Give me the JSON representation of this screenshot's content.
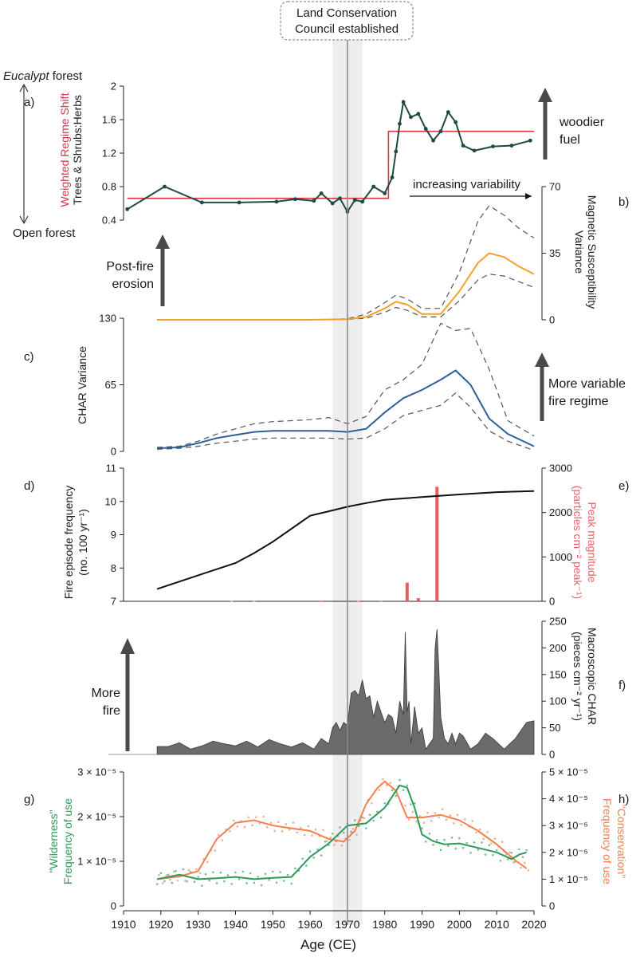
{
  "figure": {
    "x_axis": {
      "label": "Age (CE)",
      "min": 1910,
      "max": 2020,
      "ticks": [
        1910,
        1920,
        1930,
        1940,
        1950,
        1960,
        1970,
        1980,
        1990,
        2000,
        2010,
        2020
      ]
    },
    "marker": {
      "year": 1970,
      "band": [
        1966,
        1974
      ],
      "label_lines": [
        "Land Conservation",
        "Council established"
      ]
    },
    "colors": {
      "dark_teal": "#1f4a46",
      "red": "#e0313c",
      "orange": "#f5a02a",
      "blue": "#2e5f9c",
      "gray_area": "#6b6b6b",
      "green": "#2e9a5a",
      "salmon": "#f2804e",
      "arrow": "#4a4a4a"
    }
  },
  "annotations": {
    "eucalypt_italic": "Eucalypt",
    "eucalypt_rest": " forest",
    "open_forest": "Open forest",
    "woodier_fuel_lines": [
      "woodier",
      "fuel"
    ],
    "increasing_variability": "increasing variability",
    "post_fire_erosion_lines": [
      "Post-fire",
      "erosion"
    ],
    "more_variable_lines": [
      "More variable",
      "fire regime"
    ],
    "more_fire_lines": [
      "More",
      "fire"
    ]
  },
  "chart_data": [
    {
      "panel": "a)",
      "type": "line",
      "ylabel_red": "Weighted Regime Shift",
      "ylabel_black": "Trees & Shrubs:Herbs",
      "ylim": [
        0.4,
        2.0
      ],
      "yticks": [
        "0.4",
        "0.8",
        "1.2",
        "1.6",
        "2"
      ],
      "ytick_values": [
        0.4,
        0.8,
        1.2,
        1.6,
        2.0
      ],
      "series": [
        {
          "name": "Trees & Shrubs:Herbs",
          "x": [
            1911,
            1921,
            1931,
            1941,
            1951,
            1956,
            1961,
            1963,
            1966,
            1968,
            1970,
            1972,
            1974,
            1977,
            1980,
            1982,
            1983,
            1984,
            1985,
            1987,
            1989,
            1991,
            1993,
            1995,
            1997,
            1999,
            2001,
            2004,
            2009,
            2014,
            2019
          ],
          "y": [
            0.53,
            0.8,
            0.61,
            0.61,
            0.62,
            0.65,
            0.63,
            0.72,
            0.6,
            0.66,
            0.5,
            0.64,
            0.62,
            0.8,
            0.72,
            0.91,
            1.22,
            1.55,
            1.81,
            1.63,
            1.67,
            1.49,
            1.35,
            1.46,
            1.69,
            1.57,
            1.29,
            1.23,
            1.28,
            1.29,
            1.35
          ]
        },
        {
          "name": "Weighted Regime Shift",
          "x": [
            1911,
            1981,
            1981,
            2020
          ],
          "y": [
            0.66,
            0.66,
            1.46,
            1.46
          ]
        }
      ]
    },
    {
      "panel": "b)",
      "type": "line",
      "ylabel": "Magnetic Susceptibility Variance",
      "ylim": [
        0,
        70
      ],
      "yticks": [
        "0",
        "35",
        "70"
      ],
      "ytick_values": [
        0,
        35,
        70
      ],
      "x": [
        1919,
        1960,
        1970,
        1975,
        1980,
        1983,
        1986,
        1990,
        1995,
        2000,
        2005,
        2008,
        2012,
        2016,
        2020
      ],
      "series": [
        {
          "name": "mean",
          "y": [
            0,
            0,
            0.3,
            1.5,
            6,
            9.5,
            8,
            3,
            3,
            15,
            30,
            35,
            33,
            28,
            24
          ]
        },
        {
          "name": "upper",
          "y": [
            0,
            0,
            0.5,
            3,
            9,
            13,
            11,
            6,
            6,
            25,
            52,
            60,
            55,
            48,
            43
          ]
        },
        {
          "name": "lower",
          "y": [
            0,
            0,
            0.2,
            0.8,
            4,
            6.5,
            5,
            1.5,
            1.5,
            10,
            21,
            24,
            23,
            20,
            17
          ]
        }
      ]
    },
    {
      "panel": "c)",
      "type": "line",
      "ylabel": "CHAR Variance",
      "ylim": [
        0,
        130
      ],
      "yticks": [
        "0",
        "65",
        "130"
      ],
      "ytick_values": [
        0,
        65,
        130
      ],
      "x": [
        1919,
        1925,
        1930,
        1935,
        1940,
        1945,
        1950,
        1955,
        1960,
        1965,
        1970,
        1975,
        1980,
        1985,
        1990,
        1995,
        1999,
        2003,
        2008,
        2013,
        2020
      ],
      "series": [
        {
          "name": "mean",
          "y": [
            3,
            4,
            8,
            13,
            16,
            19,
            20,
            20,
            20,
            20,
            19,
            22,
            38,
            52,
            60,
            70,
            79,
            65,
            32,
            17,
            5
          ]
        },
        {
          "name": "upper",
          "y": [
            4,
            5,
            10,
            17,
            22,
            27,
            29,
            30,
            31,
            33,
            27,
            34,
            60,
            70,
            85,
            125,
            118,
            120,
            80,
            30,
            15
          ]
        },
        {
          "name": "lower",
          "y": [
            2,
            3,
            5,
            8,
            10,
            12,
            13,
            13,
            13,
            13,
            12,
            13,
            22,
            35,
            40,
            45,
            57,
            43,
            20,
            10,
            1
          ]
        }
      ]
    },
    {
      "panel": "d)",
      "type": "line",
      "ylabel_lines": [
        "Fire episode frequency",
        "(no. 100 yr⁻¹)"
      ],
      "ylim": [
        7,
        11
      ],
      "yticks": [
        "7",
        "8",
        "9",
        "10",
        "11"
      ],
      "ytick_values": [
        7,
        8,
        9,
        10,
        11
      ],
      "x": [
        1919,
        1930,
        1940,
        1945,
        1950,
        1955,
        1960,
        1966,
        1970,
        1975,
        1980,
        1990,
        2000,
        2010,
        2020
      ],
      "y": [
        7.37,
        7.78,
        8.15,
        8.45,
        8.79,
        9.18,
        9.57,
        9.73,
        9.84,
        9.95,
        10.05,
        10.13,
        10.21,
        10.28,
        10.31
      ]
    },
    {
      "panel": "e)",
      "type": "bar",
      "ylabel_lines": [
        "Peak magnitude",
        "(particles cm⁻² peak⁻¹)"
      ],
      "ylim": [
        0,
        3000
      ],
      "yticks": [
        "0",
        "1000",
        "2000",
        "3000"
      ],
      "ytick_values": [
        0,
        1000,
        2000,
        3000
      ],
      "x": [
        1939,
        1945,
        1963,
        1973,
        1979,
        1986,
        1989,
        1994
      ],
      "values": [
        10,
        10,
        5,
        8,
        6,
        420,
        70,
        2580
      ]
    },
    {
      "panel": "f)",
      "type": "area",
      "ylabel_lines": [
        "Macroscopic CHAR",
        "(pieces cm⁻² yr⁻¹)"
      ],
      "ylim": [
        0,
        250
      ],
      "yticks": [
        "0",
        "50",
        "100",
        "150",
        "200",
        "250"
      ],
      "ytick_values": [
        0,
        50,
        100,
        150,
        200,
        250
      ],
      "x": [
        1919,
        1922,
        1925,
        1928,
        1931,
        1934,
        1937,
        1940,
        1943,
        1946,
        1949,
        1952,
        1955,
        1958,
        1961,
        1963,
        1965,
        1966,
        1967,
        1968,
        1969,
        1970,
        1971,
        1972,
        1973,
        1974,
        1975,
        1976,
        1977,
        1978,
        1979,
        1980,
        1981,
        1982,
        1983,
        1984,
        1985,
        1985.5,
        1986,
        1986.5,
        1987,
        1988,
        1989,
        1990,
        1991,
        1992,
        1993,
        1993.5,
        1994,
        1994.5,
        1995,
        1996,
        1997,
        1998,
        1999,
        2000,
        2001,
        2003,
        2005,
        2007,
        2009,
        2012,
        2015,
        2018,
        2020
      ],
      "y": [
        15,
        15,
        22,
        10,
        16,
        25,
        20,
        16,
        25,
        14,
        28,
        20,
        14,
        22,
        10,
        30,
        20,
        50,
        60,
        45,
        60,
        55,
        115,
        120,
        110,
        140,
        105,
        110,
        70,
        100,
        80,
        60,
        75,
        70,
        40,
        100,
        75,
        230,
        80,
        100,
        20,
        90,
        40,
        50,
        10,
        20,
        30,
        200,
        235,
        160,
        70,
        30,
        20,
        40,
        20,
        40,
        35,
        10,
        20,
        40,
        30,
        10,
        30,
        60,
        63
      ]
    },
    {
      "panel": "g)",
      "type": "line",
      "ylabel_lines": [
        "\"Wilderness\"",
        "Frequency of use"
      ],
      "ylim": [
        0,
        3
      ],
      "yticks": [
        "0",
        "1 × 10⁻⁵",
        "2 × 10⁻⁵",
        "3 × 10⁻⁵"
      ],
      "ytick_values": [
        0,
        1,
        2,
        3
      ],
      "x": [
        1919,
        1925,
        1930,
        1935,
        1940,
        1945,
        1950,
        1955,
        1960,
        1965,
        1970,
        1975,
        1980,
        1984,
        1986,
        1988,
        1990,
        1993,
        1996,
        2000,
        2005,
        2010,
        2014,
        2016,
        2018
      ],
      "y": [
        0.6,
        0.7,
        0.6,
        0.62,
        0.65,
        0.6,
        0.63,
        0.65,
        1.1,
        1.4,
        1.8,
        1.85,
        2.2,
        2.7,
        2.65,
        2.2,
        1.6,
        1.45,
        1.38,
        1.4,
        1.3,
        1.2,
        1.05,
        1.15,
        1.2
      ]
    },
    {
      "panel": "h)",
      "type": "line",
      "ylabel_lines": [
        "\"Conservation\"",
        "Frequency of use"
      ],
      "ylim": [
        0,
        5
      ],
      "yticks": [
        "0",
        "1 × 10⁻⁵",
        "2 × 10⁻⁵",
        "3 × 10⁻⁵",
        "4 × 10⁻⁵",
        "5 × 10⁻⁵"
      ],
      "ytick_values": [
        0,
        1,
        2,
        3,
        4,
        5
      ],
      "x": [
        1919,
        1925,
        1930,
        1935,
        1940,
        1945,
        1950,
        1955,
        1960,
        1965,
        1969,
        1972,
        1975,
        1978,
        1980,
        1983,
        1986,
        1990,
        1995,
        2000,
        2005,
        2010,
        2015,
        2018
      ],
      "y": [
        1.0,
        1.1,
        1.3,
        2.5,
        3.1,
        3.2,
        3.0,
        2.9,
        2.8,
        2.5,
        2.4,
        2.8,
        3.8,
        4.4,
        4.65,
        4.3,
        3.3,
        3.3,
        3.4,
        3.2,
        2.8,
        2.3,
        1.7,
        1.4
      ]
    }
  ]
}
